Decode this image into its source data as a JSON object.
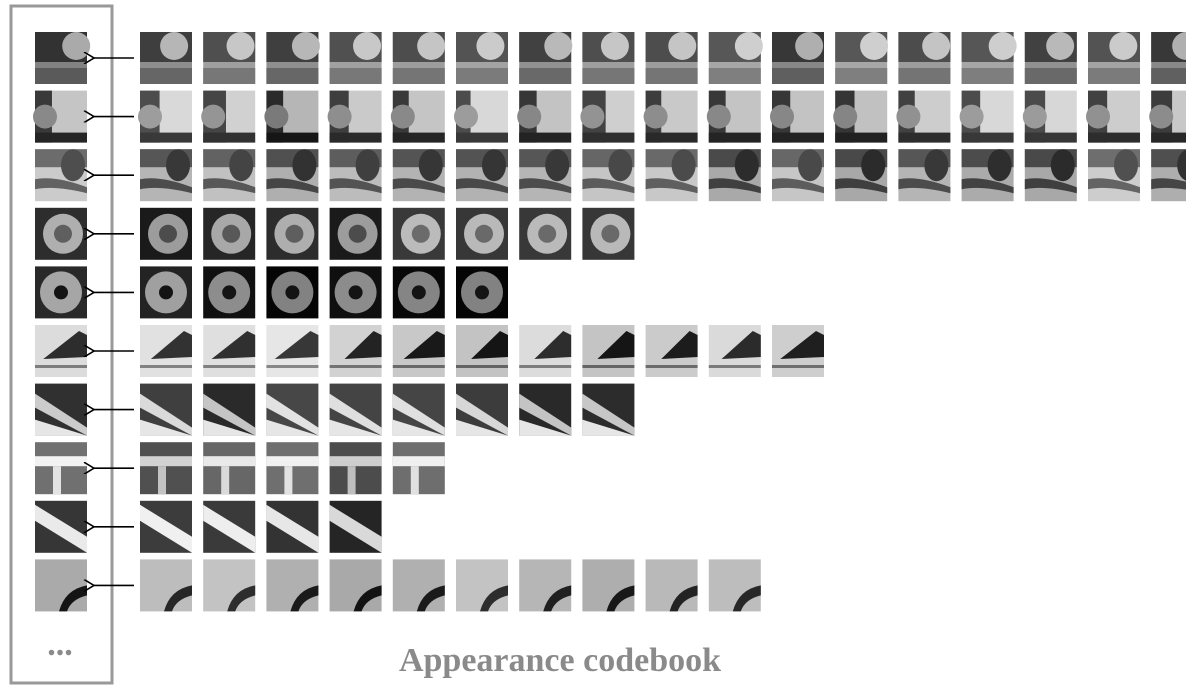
{
  "figure": {
    "ellipsis": "...",
    "caption": "Appearance codebook"
  }
}
